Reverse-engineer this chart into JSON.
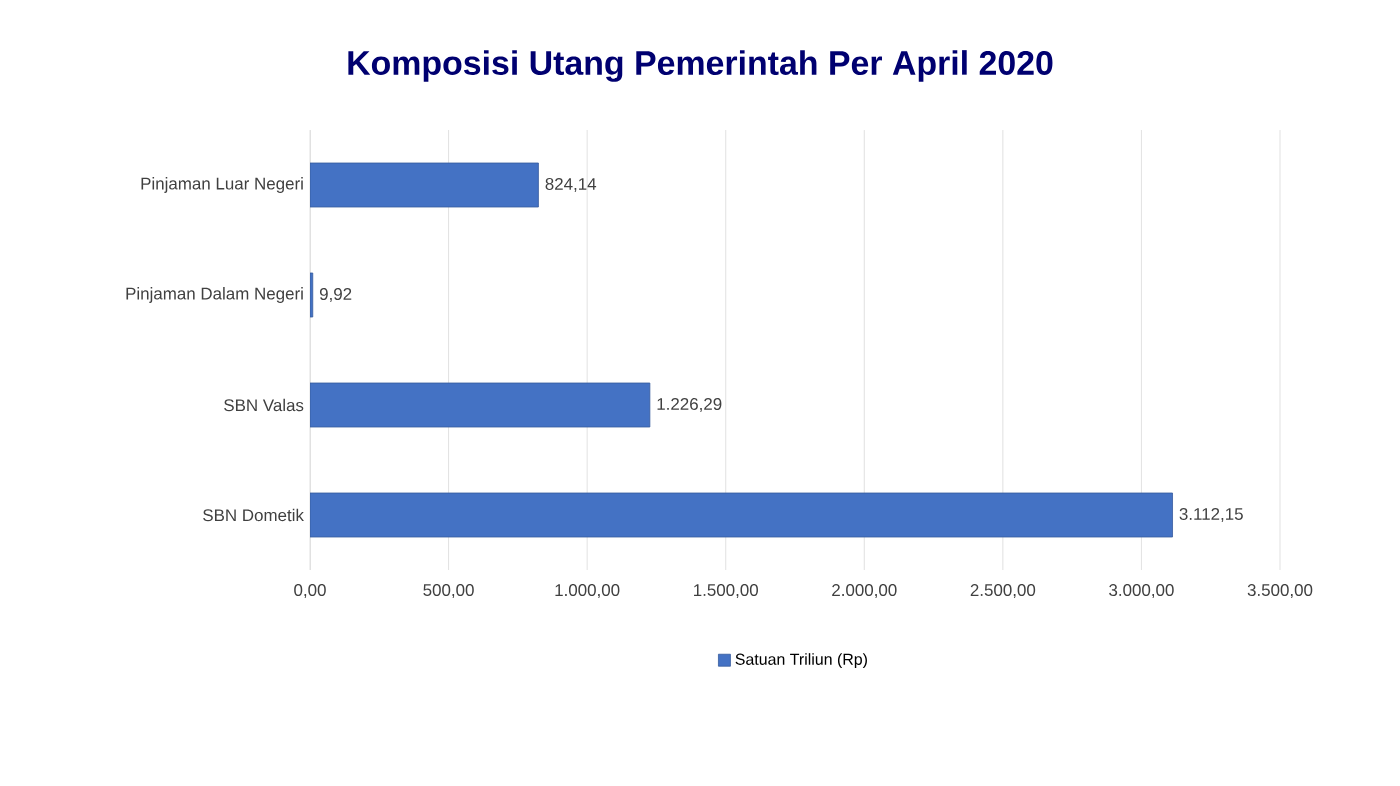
{
  "chart_data": {
    "type": "bar",
    "orientation": "horizontal",
    "title": "Komposisi Utang Pemerintah Per April 2020",
    "categories": [
      "Pinjaman Luar Negeri",
      "Pinjaman Dalam Negeri",
      "SBN Valas",
      "SBN Dometik"
    ],
    "series": [
      {
        "name": "Satuan Triliun (Rp)",
        "color": "#4472c4",
        "values": [
          824.14,
          9.92,
          1226.29,
          3112.15
        ],
        "value_labels": [
          "824,14",
          "9,92",
          "1.226,29",
          "3.112,15"
        ]
      }
    ],
    "xlim": [
      0,
      3500
    ],
    "xticks": [
      {
        "value": 0,
        "label": "0,00"
      },
      {
        "value": 500,
        "label": "500,00"
      },
      {
        "value": 1000,
        "label": "1.000,00"
      },
      {
        "value": 1500,
        "label": "1.500,00"
      },
      {
        "value": 2000,
        "label": "2.000,00"
      },
      {
        "value": 2500,
        "label": "2.500,00"
      },
      {
        "value": 3000,
        "label": "3.000,00"
      },
      {
        "value": 3500,
        "label": "3.500,00"
      }
    ],
    "grid": "x",
    "legend": "bottom"
  }
}
